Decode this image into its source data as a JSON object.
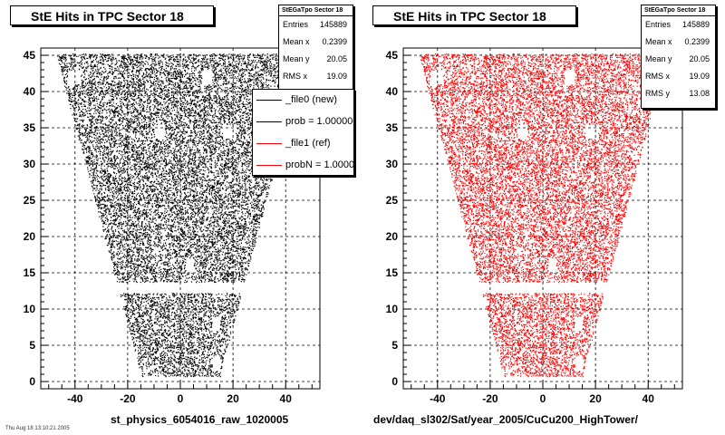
{
  "chart_data": [
    {
      "type": "scatter",
      "title": "StE Hits in TPC Sector 18",
      "xlabel": "st_physics_6054016_raw_1020005",
      "ylabel": "",
      "xlim": [
        -53,
        53
      ],
      "ylim": [
        -1,
        46
      ],
      "xticks": [
        -40,
        -20,
        0,
        20,
        40
      ],
      "yticks": [
        0,
        5,
        10,
        15,
        20,
        25,
        30,
        35,
        40,
        45
      ],
      "grid": true,
      "series": [
        {
          "color": "#000000",
          "row_range": [
            1,
            45
          ],
          "half_width_at_row_1": 15,
          "half_width_at_row_45": 47,
          "gap_row": 13
        }
      ],
      "stats": {
        "header": "StEGaTpo Sector 18",
        "entries": [
          {
            "key": "Entries",
            "value": "145889"
          },
          {
            "key": "Mean x",
            "value": "0.2399"
          },
          {
            "key": "Mean y",
            "value": "20.05"
          },
          {
            "key": "RMS x",
            "value": "19.09"
          }
        ]
      },
      "legend": {
        "entries": [
          {
            "label": "_file0 (new)",
            "color": "#000000"
          },
          {
            "label": "prob = 1.000000",
            "color": "#000000"
          },
          {
            "label": "_file1 (ref)",
            "color": "#ff0000"
          },
          {
            "label": "probN = 1.000000",
            "color": "#ff0000"
          }
        ]
      }
    },
    {
      "type": "scatter",
      "title": "StE Hits in TPC Sector 18",
      "xlabel": "dev/daq_sl302/Sat/year_2005/CuCu200_HighTower/",
      "ylabel": "",
      "xlim": [
        -53,
        53
      ],
      "ylim": [
        -1,
        46
      ],
      "xticks": [
        -40,
        -20,
        0,
        20,
        40
      ],
      "yticks": [
        0,
        5,
        10,
        15,
        20,
        25,
        30,
        35,
        40,
        45
      ],
      "grid": true,
      "series": [
        {
          "color": "#ff0000",
          "row_range": [
            1,
            45
          ],
          "half_width_at_row_1": 15,
          "half_width_at_row_45": 47,
          "gap_row": 13
        }
      ],
      "stats": {
        "header": "StEGaTpo Sector 18",
        "entries": [
          {
            "key": "Entries",
            "value": "145889"
          },
          {
            "key": "Mean x",
            "value": "0.2399"
          },
          {
            "key": "Mean y",
            "value": "20.05"
          },
          {
            "key": "RMS x",
            "value": "19.09"
          },
          {
            "key": "RMS y",
            "value": "13.08"
          }
        ]
      }
    }
  ],
  "footer_text": "Thu Aug 18 13:10:21 2005"
}
